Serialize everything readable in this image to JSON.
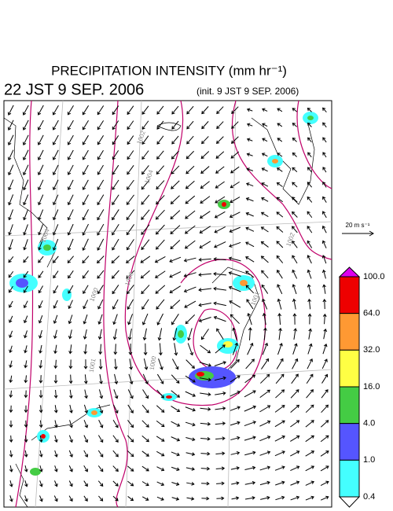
{
  "header": {
    "title": "PRECIPITATION INTENSITY (mm hr⁻¹)",
    "valid_time": "22 JST 9 SEP. 2006",
    "init_time": "(init. 9 JST 9 SEP. 2006)"
  },
  "wind_scale": {
    "label": "20 m s⁻¹"
  },
  "colorbar": {
    "labels": [
      "100.0",
      "64.0",
      "32.0",
      "16.0",
      "4.0",
      "1.0",
      "0.4"
    ],
    "colors": [
      "#dd00ee",
      "#ee0000",
      "#ff9933",
      "#ffff44",
      "#44cc44",
      "#5555ff",
      "#44ffff",
      "#ffffff"
    ]
  },
  "isobars": {
    "labels": [
      "1002",
      "1004",
      "1006",
      "1000",
      "1002",
      "1001",
      "1000",
      "1001",
      "1004"
    ]
  }
}
